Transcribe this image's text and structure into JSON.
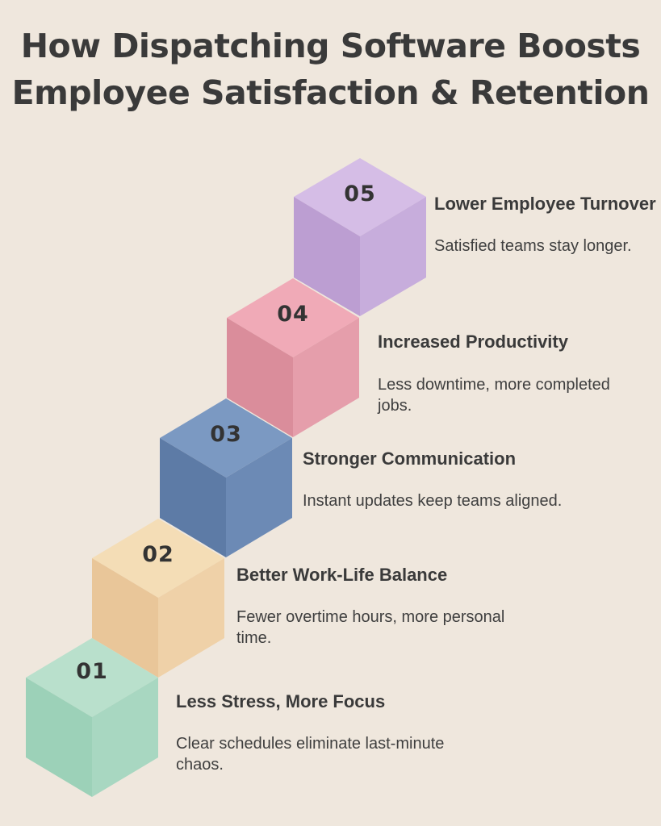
{
  "title": {
    "line1": "How Dispatching Software Boosts",
    "line2": "Employee Satisfaction & Retention"
  },
  "steps": [
    {
      "number": "01",
      "heading": "Less Stress, More Focus",
      "description": "Clear schedules eliminate last-minute chaos.",
      "colors": {
        "top": "#b9e0cc",
        "left": "#9cd1b8",
        "right": "#a8d7c1"
      }
    },
    {
      "number": "02",
      "heading": "Better Work-Life Balance",
      "description": "Fewer overtime hours, more personal time.",
      "colors": {
        "top": "#f4ddb6",
        "left": "#e9c699",
        "right": "#efd1a8"
      }
    },
    {
      "number": "03",
      "heading": "Stronger Communication",
      "description": "Instant updates keep teams aligned.",
      "colors": {
        "top": "#7b99c2",
        "left": "#5d7ba6",
        "right": "#6c8ab5"
      }
    },
    {
      "number": "04",
      "heading": "Increased Productivity",
      "description": "Less downtime, more completed jobs.",
      "colors": {
        "top": "#f0aab7",
        "left": "#da8d9b",
        "right": "#e59eab"
      }
    },
    {
      "number": "05",
      "heading": "Lower Employee Turnover",
      "description": "Satisfied teams stay longer.",
      "colors": {
        "top": "#d5bde6",
        "left": "#bc9ed2",
        "right": "#c7addc"
      }
    }
  ]
}
